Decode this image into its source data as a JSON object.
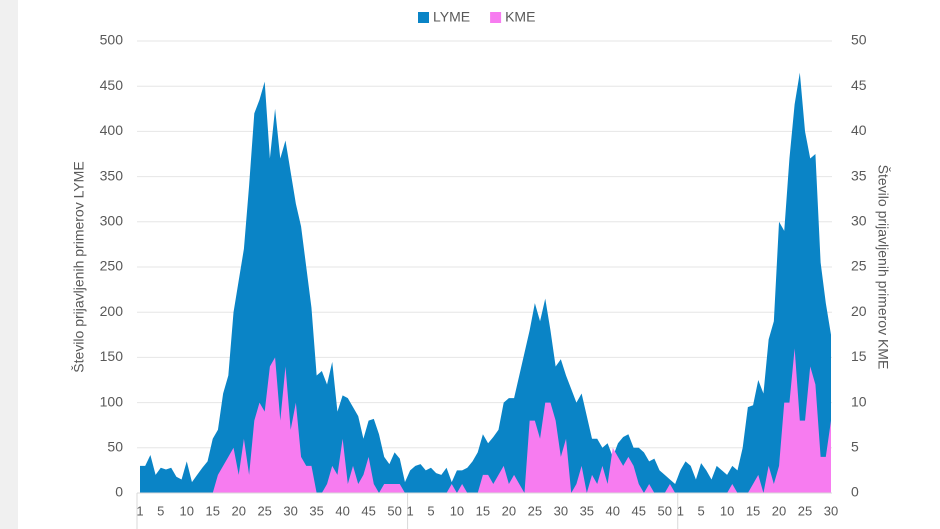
{
  "chart_data": {
    "type": "area",
    "y_label": "Število prijavljenih primerov LYME",
    "y2_label": "Število prijavljenih primerov KME",
    "categories": [
      "1",
      null,
      null,
      null,
      "5",
      null,
      null,
      null,
      null,
      "10",
      null,
      null,
      null,
      null,
      "15",
      null,
      null,
      null,
      null,
      "20",
      null,
      null,
      null,
      null,
      "25",
      null,
      null,
      null,
      null,
      "30",
      null,
      null,
      null,
      null,
      "35",
      null,
      null,
      null,
      null,
      "40",
      null,
      null,
      null,
      null,
      "45",
      null,
      null,
      null,
      null,
      "50",
      null,
      null,
      "1",
      null,
      null,
      null,
      "5",
      null,
      null,
      null,
      null,
      "10",
      null,
      null,
      null,
      null,
      "15",
      null,
      null,
      null,
      null,
      "20",
      null,
      null,
      null,
      null,
      "25",
      null,
      null,
      null,
      null,
      "30",
      null,
      null,
      null,
      null,
      "35",
      null,
      null,
      null,
      null,
      "40",
      null,
      null,
      null,
      null,
      "45",
      null,
      null,
      null,
      null,
      "50",
      null,
      null,
      "1",
      null,
      null,
      null,
      "5",
      null,
      null,
      null,
      null,
      "10",
      null,
      null,
      null,
      null,
      "15",
      null,
      null,
      null,
      null,
      "20",
      null,
      null,
      null,
      null,
      "25",
      null,
      null,
      null,
      null,
      "30"
    ],
    "series": [
      {
        "name": "LYME",
        "color": "#0a84c6",
        "axis": "y",
        "values": [
          30,
          30,
          42,
          20,
          28,
          26,
          28,
          18,
          15,
          35,
          12,
          20,
          28,
          35,
          60,
          70,
          110,
          130,
          200,
          235,
          270,
          340,
          420,
          435,
          455,
          370,
          425,
          370,
          390,
          355,
          320,
          295,
          250,
          205,
          130,
          135,
          120,
          145,
          90,
          108,
          105,
          95,
          85,
          60,
          80,
          82,
          65,
          40,
          32,
          45,
          38,
          12,
          25,
          30,
          32,
          25,
          28,
          22,
          20,
          28,
          12,
          25,
          25,
          28,
          35,
          45,
          65,
          55,
          62,
          70,
          100,
          105,
          105,
          130,
          155,
          180,
          210,
          190,
          215,
          180,
          140,
          148,
          130,
          115,
          100,
          110,
          85,
          60,
          60,
          50,
          55,
          40,
          55,
          62,
          65,
          50,
          50,
          45,
          35,
          38,
          25,
          20,
          15,
          10,
          25,
          35,
          30,
          15,
          33,
          25,
          15,
          30,
          25,
          20,
          30,
          25,
          50,
          95,
          97,
          125,
          110,
          170,
          190,
          300,
          290,
          370,
          430,
          465,
          400,
          370,
          375,
          255,
          210,
          175
        ]
      },
      {
        "name": "KME",
        "color": "#f77cf0",
        "axis": "y2",
        "values": [
          0,
          0,
          0,
          0,
          0,
          0,
          0,
          0,
          0,
          0,
          0,
          0,
          0,
          0,
          0,
          2,
          3,
          4,
          5,
          2,
          6,
          2,
          8,
          10,
          9,
          14,
          15,
          8,
          14,
          7,
          10,
          4,
          3,
          3,
          0,
          0,
          1,
          3,
          2,
          6,
          1,
          3,
          1,
          2,
          4,
          1,
          0,
          1,
          1,
          1,
          1,
          0,
          0,
          0,
          0,
          0,
          0,
          0,
          0,
          0,
          1,
          0,
          1,
          0,
          0,
          0,
          2,
          2,
          1,
          2,
          3,
          1,
          2,
          1,
          0,
          8,
          8,
          6,
          10,
          10,
          8,
          4,
          6,
          0,
          1,
          3,
          0,
          2,
          1,
          3,
          1,
          5,
          4,
          3,
          4,
          3,
          1,
          0,
          1,
          0,
          0,
          0,
          1,
          0,
          0,
          0,
          0,
          0,
          0,
          0,
          0,
          0,
          0,
          0,
          1,
          0,
          0,
          0,
          1,
          2,
          0,
          3,
          1,
          3,
          10,
          10,
          16,
          8,
          8,
          14,
          12,
          4,
          4,
          8
        ]
      }
    ],
    "ylim": [
      0,
      500
    ],
    "yticks": [
      0,
      50,
      100,
      150,
      200,
      250,
      300,
      350,
      400,
      450,
      500
    ],
    "y2lim": [
      0,
      50
    ],
    "y2ticks": [
      0,
      5,
      10,
      15,
      20,
      25,
      30,
      35,
      40,
      45,
      50
    ],
    "grid": true,
    "legend": "top"
  }
}
